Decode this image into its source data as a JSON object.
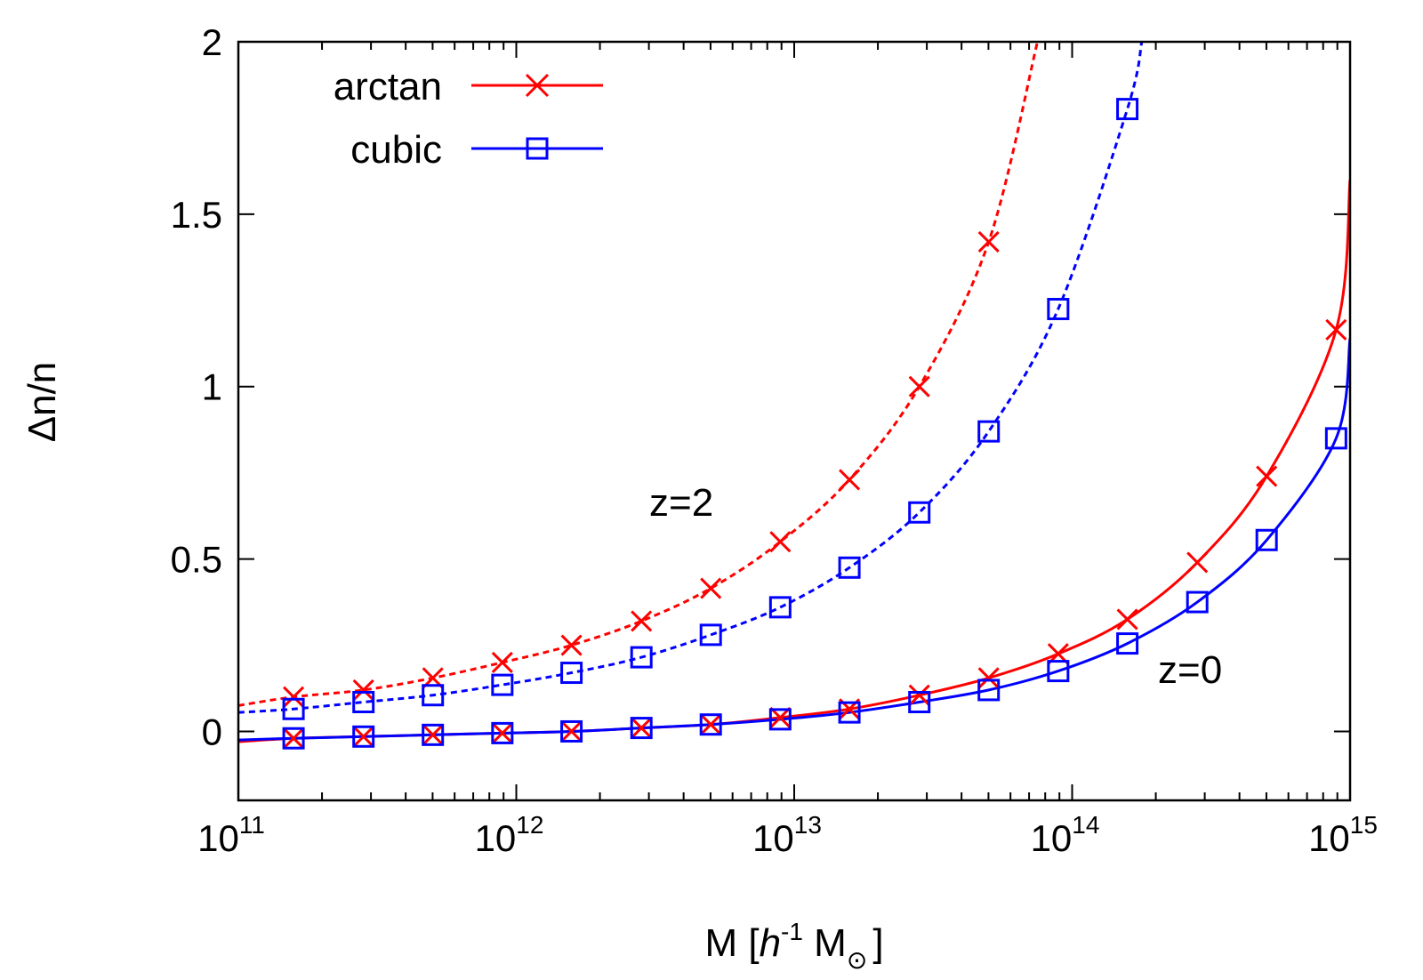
{
  "chart_data": {
    "type": "line",
    "xscale": "log",
    "xlim": [
      100000000000.0,
      1000000000000000.0
    ],
    "ylim": [
      -0.2,
      2
    ],
    "xlabel": {
      "prefix": "M [",
      "italic": "h",
      "sup": "-1",
      "suffix": " M",
      "sun": "⊙",
      "end": "]"
    },
    "ylabel": "Δn/n",
    "xticks": [
      {
        "value": 100000000000.0,
        "base": "10",
        "exp": "11"
      },
      {
        "value": 1000000000000.0,
        "base": "10",
        "exp": "12"
      },
      {
        "value": 10000000000000.0,
        "base": "10",
        "exp": "13"
      },
      {
        "value": 100000000000000.0,
        "base": "10",
        "exp": "14"
      },
      {
        "value": 1000000000000000.0,
        "base": "10",
        "exp": "15"
      }
    ],
    "yticks": [
      {
        "value": 0,
        "label": "0"
      },
      {
        "value": 0.5,
        "label": "0.5"
      },
      {
        "value": 1,
        "label": "1"
      },
      {
        "value": 1.5,
        "label": "1.5"
      },
      {
        "value": 2,
        "label": "2"
      }
    ],
    "legend": [
      {
        "label": "arctan",
        "color": "#ff0000",
        "marker": "cross"
      },
      {
        "label": "cubic",
        "color": "#0000ff",
        "marker": "square"
      }
    ],
    "annotations": [
      {
        "text": "z=2",
        "x": 3000000000000.0,
        "y": 0.7
      },
      {
        "text": "z=0",
        "x": 300000000000000.0,
        "y": 0.19
      }
    ],
    "series": [
      {
        "name": "arctan z=2",
        "color": "#ff0000",
        "dash": true,
        "marker": "cross",
        "x": [
          100000000000.0,
          158000000000.0,
          282000000000.0,
          501000000000.0,
          891000000000.0,
          1580000000000.0,
          2820000000000.0,
          5010000000000.0,
          8910000000000.0,
          15800000000000.0,
          28200000000000.0,
          50100000000000.0,
          75000000000000.0
        ],
        "y": [
          0.075,
          0.1,
          0.12,
          0.155,
          0.2,
          0.25,
          0.32,
          0.415,
          0.55,
          0.73,
          1.0,
          1.42,
          2.0
        ],
        "points_x": [
          158000000000.0,
          282000000000.0,
          501000000000.0,
          891000000000.0,
          1580000000000.0,
          2820000000000.0,
          5010000000000.0,
          8910000000000.0,
          15800000000000.0,
          28200000000000.0,
          50100000000000.0
        ],
        "points_y": [
          0.1,
          0.12,
          0.155,
          0.2,
          0.25,
          0.32,
          0.415,
          0.55,
          0.73,
          1.0,
          1.42
        ]
      },
      {
        "name": "cubic z=2",
        "color": "#0000ff",
        "dash": true,
        "marker": "square",
        "x": [
          100000000000.0,
          158000000000.0,
          282000000000.0,
          501000000000.0,
          891000000000.0,
          1580000000000.0,
          2820000000000.0,
          5010000000000.0,
          8910000000000.0,
          15800000000000.0,
          28200000000000.0,
          50100000000000.0,
          89100000000000.0,
          158000000000000.0,
          178000000000000.0
        ],
        "y": [
          0.055,
          0.065,
          0.085,
          0.105,
          0.135,
          0.17,
          0.215,
          0.28,
          0.36,
          0.475,
          0.635,
          0.87,
          1.225,
          1.805,
          2.0
        ],
        "points_x": [
          158000000000.0,
          282000000000.0,
          501000000000.0,
          891000000000.0,
          1580000000000.0,
          2820000000000.0,
          5010000000000.0,
          8910000000000.0,
          15800000000000.0,
          28200000000000.0,
          50100000000000.0,
          89100000000000.0,
          158000000000000.0
        ],
        "points_y": [
          0.065,
          0.085,
          0.105,
          0.135,
          0.17,
          0.215,
          0.28,
          0.36,
          0.475,
          0.635,
          0.87,
          1.225,
          1.805
        ]
      },
      {
        "name": "arctan z=0",
        "color": "#ff0000",
        "dash": false,
        "marker": "cross",
        "x": [
          100000000000.0,
          158000000000.0,
          282000000000.0,
          501000000000.0,
          891000000000.0,
          1580000000000.0,
          2820000000000.0,
          5010000000000.0,
          8910000000000.0,
          15800000000000.0,
          28200000000000.0,
          50100000000000.0,
          89100000000000.0,
          158000000000000.0,
          282000000000000.0,
          501000000000000.0,
          891000000000000.0,
          1000000000000000.0
        ],
        "y": [
          -0.03,
          -0.02,
          -0.015,
          -0.01,
          -0.005,
          0.0,
          0.01,
          0.02,
          0.04,
          0.065,
          0.105,
          0.155,
          0.225,
          0.325,
          0.49,
          0.74,
          1.165,
          1.6
        ],
        "points_x": [
          158000000000.0,
          282000000000.0,
          501000000000.0,
          891000000000.0,
          1580000000000.0,
          2820000000000.0,
          5010000000000.0,
          8910000000000.0,
          15800000000000.0,
          28200000000000.0,
          50100000000000.0,
          89100000000000.0,
          158000000000000.0,
          282000000000000.0,
          501000000000000.0,
          891000000000000.0
        ],
        "points_y": [
          -0.02,
          -0.015,
          -0.01,
          -0.005,
          0.0,
          0.01,
          0.02,
          0.04,
          0.065,
          0.105,
          0.155,
          0.225,
          0.325,
          0.49,
          0.74,
          1.165
        ]
      },
      {
        "name": "cubic z=0",
        "color": "#0000ff",
        "dash": false,
        "marker": "square",
        "x": [
          100000000000.0,
          158000000000.0,
          282000000000.0,
          501000000000.0,
          891000000000.0,
          1580000000000.0,
          2820000000000.0,
          5010000000000.0,
          8910000000000.0,
          15800000000000.0,
          28200000000000.0,
          50100000000000.0,
          89100000000000.0,
          158000000000000.0,
          282000000000000.0,
          501000000000000.0,
          891000000000000.0,
          1000000000000000.0
        ],
        "y": [
          -0.025,
          -0.02,
          -0.015,
          -0.01,
          -0.005,
          0.0,
          0.01,
          0.02,
          0.035,
          0.055,
          0.085,
          0.12,
          0.175,
          0.255,
          0.375,
          0.555,
          0.85,
          1.14
        ],
        "points_x": [
          158000000000.0,
          282000000000.0,
          501000000000.0,
          891000000000.0,
          1580000000000.0,
          2820000000000.0,
          5010000000000.0,
          8910000000000.0,
          15800000000000.0,
          28200000000000.0,
          50100000000000.0,
          89100000000000.0,
          158000000000000.0,
          282000000000000.0,
          501000000000000.0,
          891000000000000.0
        ],
        "points_y": [
          -0.02,
          -0.015,
          -0.01,
          -0.005,
          0.0,
          0.01,
          0.02,
          0.035,
          0.055,
          0.085,
          0.12,
          0.175,
          0.255,
          0.375,
          0.555,
          0.85
        ]
      }
    ]
  }
}
